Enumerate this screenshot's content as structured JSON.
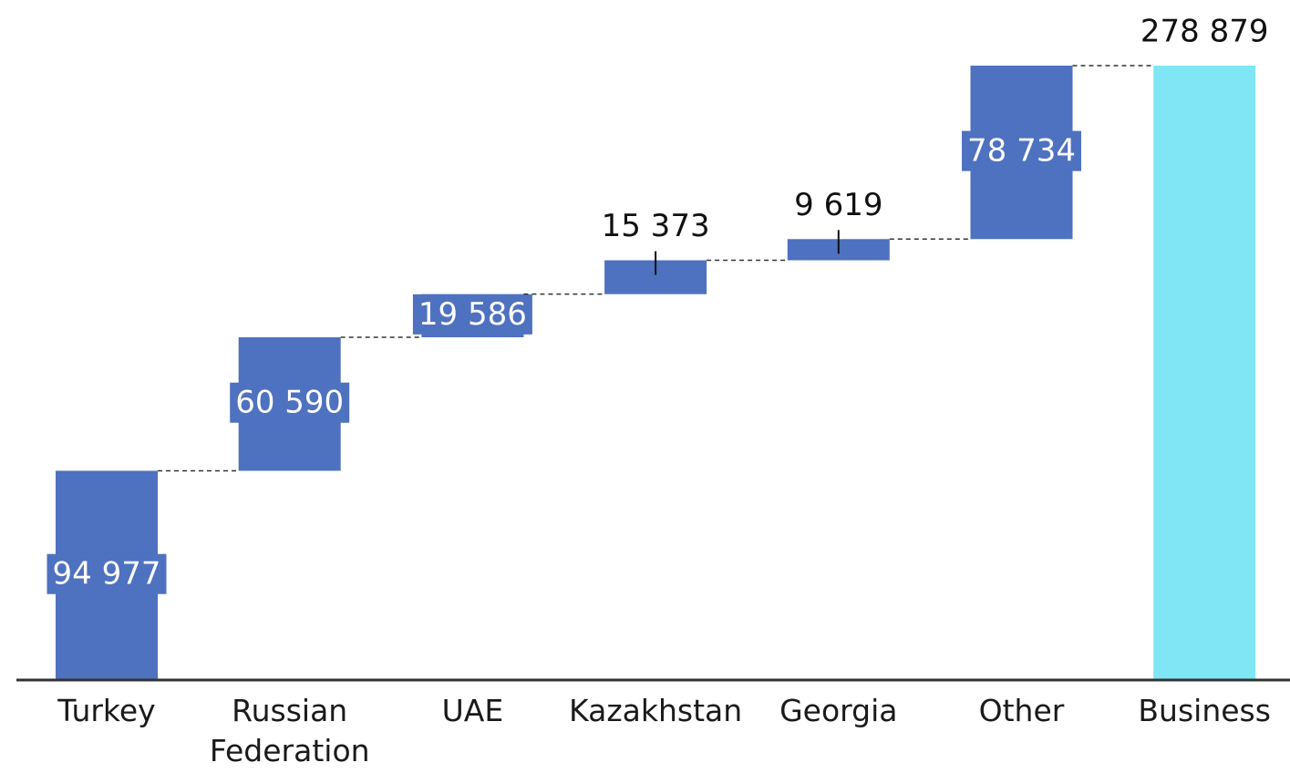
{
  "chart_data": {
    "type": "waterfall",
    "categories": [
      "Turkey",
      "Russian Federation",
      "UAE",
      "Kazakhstan",
      "Georgia",
      "Other",
      "Business"
    ],
    "values": [
      94977,
      60590,
      19586,
      15373,
      9619,
      78734,
      278879
    ],
    "value_labels": [
      "94 977",
      "60 590",
      "19 586",
      "15 373",
      "9 619",
      "78 734",
      "278 879"
    ],
    "is_total": [
      false,
      false,
      false,
      false,
      false,
      false,
      true
    ],
    "color": "#4e71c0",
    "total_color": "#80e6f5"
  }
}
